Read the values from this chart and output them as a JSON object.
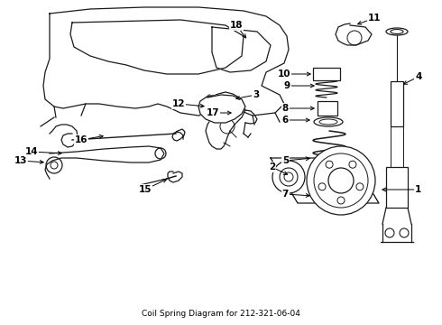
{
  "title": "Coil Spring Diagram for 212-321-06-04",
  "bg": "#ffffff",
  "fg": "#1a1a1a",
  "figsize": [
    4.9,
    3.6
  ],
  "dpi": 100,
  "label_positions": {
    "1": [
      456,
      48,
      435,
      55
    ],
    "2": [
      320,
      68,
      335,
      75
    ],
    "3": [
      275,
      108,
      262,
      115
    ],
    "4": [
      453,
      108,
      443,
      120
    ],
    "5": [
      330,
      145,
      348,
      148
    ],
    "6": [
      330,
      120,
      347,
      123
    ],
    "7": [
      330,
      167,
      347,
      170
    ],
    "8": [
      330,
      132,
      345,
      136
    ],
    "9": [
      330,
      110,
      346,
      113
    ],
    "10": [
      330,
      98,
      350,
      101
    ],
    "11": [
      395,
      32,
      400,
      42
    ],
    "12": [
      196,
      118,
      213,
      128
    ],
    "13": [
      35,
      115,
      58,
      118
    ],
    "14": [
      52,
      168,
      75,
      171
    ],
    "15": [
      180,
      198,
      193,
      205
    ],
    "16": [
      100,
      142,
      120,
      148
    ],
    "17": [
      252,
      128,
      272,
      125
    ],
    "18": [
      252,
      28,
      272,
      40
    ]
  }
}
